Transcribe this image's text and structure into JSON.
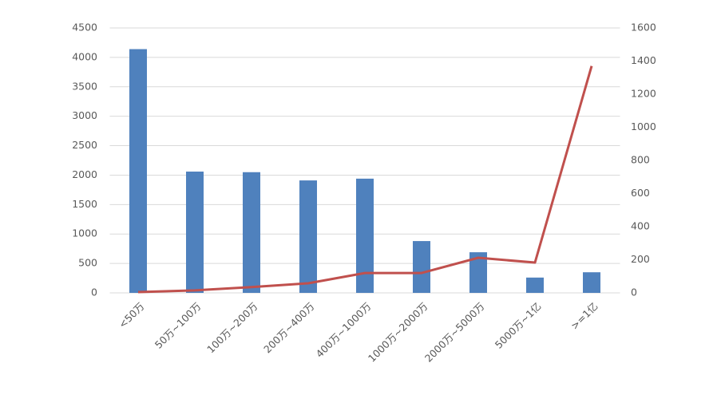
{
  "chart_data": {
    "type": "combo",
    "categories": [
      "<50万",
      "50万~100万",
      "100万~200万",
      "200万~400万",
      "400万~1000万",
      "1000万~2000万",
      "2000万~5000万",
      "5000万~1亿",
      ">=1亿"
    ],
    "series": [
      {
        "type": "bar",
        "color": "#4f81bd",
        "axis": "y",
        "values": [
          4140,
          2060,
          2050,
          1910,
          1940,
          880,
          690,
          260,
          350
        ]
      },
      {
        "type": "line",
        "color": "#c0504d",
        "axis": "y2",
        "values": [
          5,
          15,
          35,
          58,
          120,
          120,
          212,
          183,
          1370
        ]
      }
    ],
    "ylim": [
      0,
      4500
    ],
    "yticks": [
      0,
      500,
      1000,
      1500,
      2000,
      2500,
      3000,
      3500,
      4000,
      4500
    ],
    "y2lim": [
      0,
      1600
    ],
    "y2ticks": [
      0,
      200,
      400,
      600,
      800,
      1000,
      1200,
      1400,
      1600
    ],
    "grid": true
  }
}
